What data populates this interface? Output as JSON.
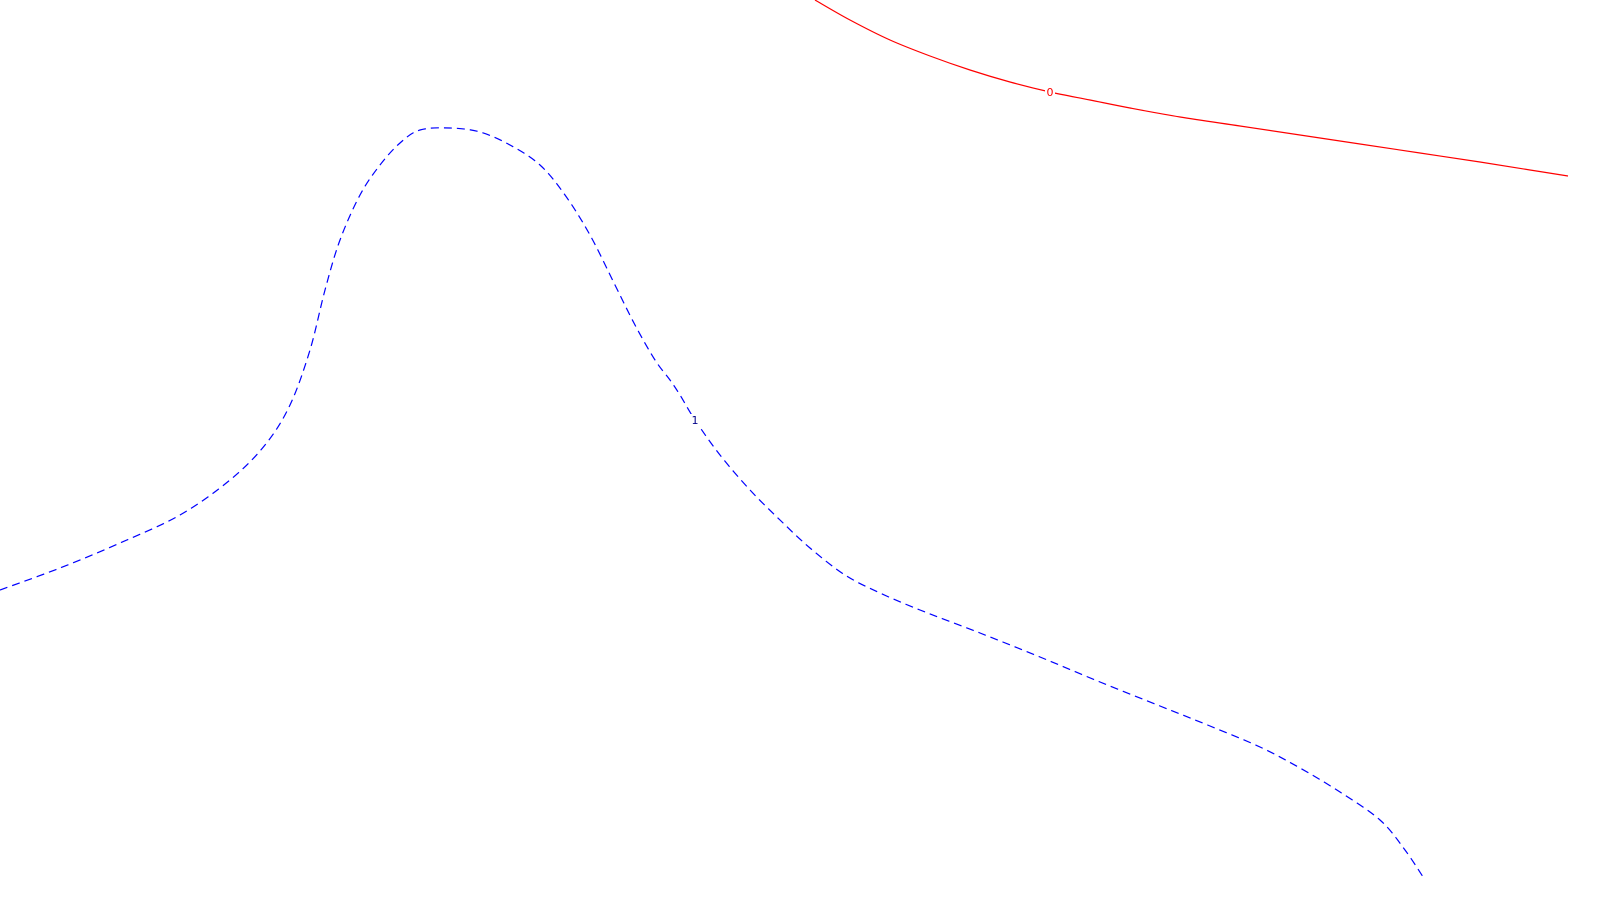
{
  "chart_data": {
    "type": "line",
    "title": "",
    "xlabel": "",
    "ylabel": "",
    "grid": false,
    "series": [
      {
        "line_style": "solid",
        "color": "#ff0000",
        "contour_label": "0",
        "label_at_point": 6,
        "x": [
          815,
          850,
          890,
          930,
          970,
          1010,
          1050,
          1090,
          1130,
          1180,
          1240,
          1300,
          1360,
          1420,
          1480,
          1530,
          1568
        ],
        "y": [
          0,
          20,
          40,
          56,
          70,
          82,
          92,
          100,
          108,
          117,
          126,
          135,
          144,
          153,
          162,
          170,
          176
        ]
      },
      {
        "line_style": "dashed",
        "color": "#0000ff",
        "contour_label": "1",
        "label_at_point": 25,
        "x": [
          0,
          60,
          120,
          180,
          230,
          265,
          290,
          310,
          325,
          340,
          360,
          380,
          400,
          420,
          450,
          480,
          510,
          540,
          565,
          590,
          615,
          635,
          655,
          670,
          680,
          695,
          720,
          750,
          780,
          810,
          845,
          880,
          920,
          980,
          1040,
          1100,
          1160,
          1210,
          1260,
          1300,
          1340,
          1380,
          1405,
          1425
        ],
        "y": [
          590,
          568,
          543,
          515,
          480,
          445,
          405,
          350,
          290,
          240,
          195,
          165,
          143,
          130,
          128,
          132,
          145,
          165,
          195,
          235,
          285,
          325,
          360,
          380,
          395,
          420,
          455,
          490,
          520,
          548,
          575,
          593,
          610,
          633,
          657,
          682,
          706,
          726,
          747,
          768,
          792,
          820,
          850,
          880
        ]
      }
    ]
  }
}
